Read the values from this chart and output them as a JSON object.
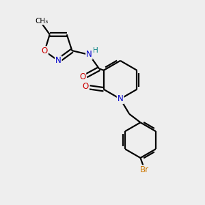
{
  "bg_color": "#eeeeee",
  "bond_color": "#000000",
  "N_color": "#0000cc",
  "O_color": "#cc0000",
  "Br_color": "#cc7700",
  "H_color": "#008080",
  "line_width": 1.6,
  "figsize": [
    3.0,
    3.0
  ],
  "dpi": 100,
  "xlim": [
    0,
    10
  ],
  "ylim": [
    0,
    10
  ]
}
